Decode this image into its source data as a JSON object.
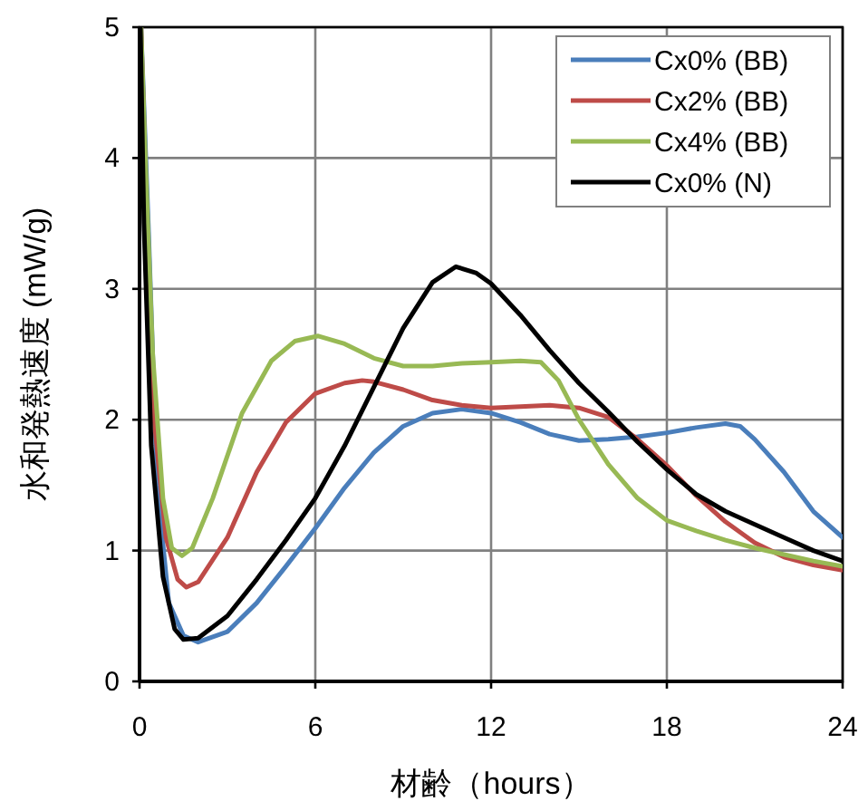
{
  "chart_data": {
    "type": "line",
    "xlabel": "材齢（hours）",
    "ylabel": "水和発熱速度 (mW/g)",
    "xlim": [
      0,
      24
    ],
    "ylim": [
      0,
      5
    ],
    "xticks": [
      0,
      6,
      12,
      18,
      24
    ],
    "yticks": [
      0,
      1,
      2,
      3,
      4,
      5
    ],
    "grid": true,
    "legend": "top right",
    "marker": "none",
    "line_style": "solid",
    "series": [
      {
        "name": "Cx0% (BB)",
        "color": "#4a7ebb",
        "x": [
          0.05,
          0.3,
          0.6,
          1,
          1.5,
          2,
          3,
          4,
          5,
          6,
          7,
          8,
          9,
          10,
          11,
          12,
          13,
          14,
          15,
          16,
          17,
          18,
          19,
          20,
          20.5,
          21,
          22,
          23,
          24
        ],
        "values": [
          5,
          3.5,
          1.5,
          0.6,
          0.35,
          0.3,
          0.38,
          0.6,
          0.88,
          1.17,
          1.48,
          1.75,
          1.95,
          2.05,
          2.08,
          2.05,
          1.98,
          1.89,
          1.84,
          1.85,
          1.87,
          1.9,
          1.94,
          1.97,
          1.95,
          1.85,
          1.6,
          1.3,
          1.1
        ]
      },
      {
        "name": "Cx2% (BB)",
        "color": "#be4b48",
        "x": [
          0.05,
          0.25,
          0.5,
          0.9,
          1.3,
          1.6,
          2,
          3,
          4,
          5,
          6,
          7,
          7.6,
          8,
          9,
          10,
          11,
          12,
          13,
          14,
          15,
          16,
          17,
          18,
          19,
          20,
          21,
          22,
          23,
          24
        ],
        "values": [
          5,
          3.5,
          2,
          1.1,
          0.78,
          0.72,
          0.76,
          1.1,
          1.6,
          1.98,
          2.2,
          2.28,
          2.3,
          2.29,
          2.23,
          2.15,
          2.11,
          2.09,
          2.1,
          2.11,
          2.09,
          2.02,
          1.85,
          1.65,
          1.42,
          1.22,
          1.06,
          0.95,
          0.89,
          0.85
        ]
      },
      {
        "name": "Cx4% (BB)",
        "color": "#98b954",
        "x": [
          0.05,
          0.2,
          0.45,
          0.8,
          1.1,
          1.45,
          1.8,
          2.5,
          3.5,
          4.5,
          5.3,
          6.1,
          7,
          8,
          9,
          10,
          11,
          12,
          13,
          13.7,
          14.3,
          15,
          16,
          17,
          18,
          19,
          20,
          21,
          22,
          23,
          24
        ],
        "values": [
          5,
          4,
          2.5,
          1.4,
          1.02,
          0.96,
          1.02,
          1.4,
          2.05,
          2.45,
          2.6,
          2.64,
          2.58,
          2.47,
          2.41,
          2.41,
          2.43,
          2.44,
          2.45,
          2.44,
          2.3,
          2,
          1.66,
          1.4,
          1.23,
          1.15,
          1.08,
          1.02,
          0.97,
          0.92,
          0.88
        ]
      },
      {
        "name": "Cx0% (N)",
        "color": "#000000",
        "x": [
          0.03,
          0.15,
          0.4,
          0.8,
          1.2,
          1.5,
          2,
          3,
          4,
          5,
          6,
          7,
          8,
          9,
          10,
          10.8,
          11.5,
          12,
          13,
          14,
          15,
          16,
          17,
          18,
          19,
          20,
          21,
          22,
          23,
          24
        ],
        "values": [
          5,
          3.5,
          1.8,
          0.8,
          0.4,
          0.32,
          0.33,
          0.5,
          0.78,
          1.08,
          1.4,
          1.8,
          2.25,
          2.7,
          3.05,
          3.17,
          3.12,
          3.04,
          2.8,
          2.53,
          2.28,
          2.06,
          1.83,
          1.62,
          1.43,
          1.3,
          1.2,
          1.1,
          1,
          0.92
        ]
      }
    ]
  }
}
